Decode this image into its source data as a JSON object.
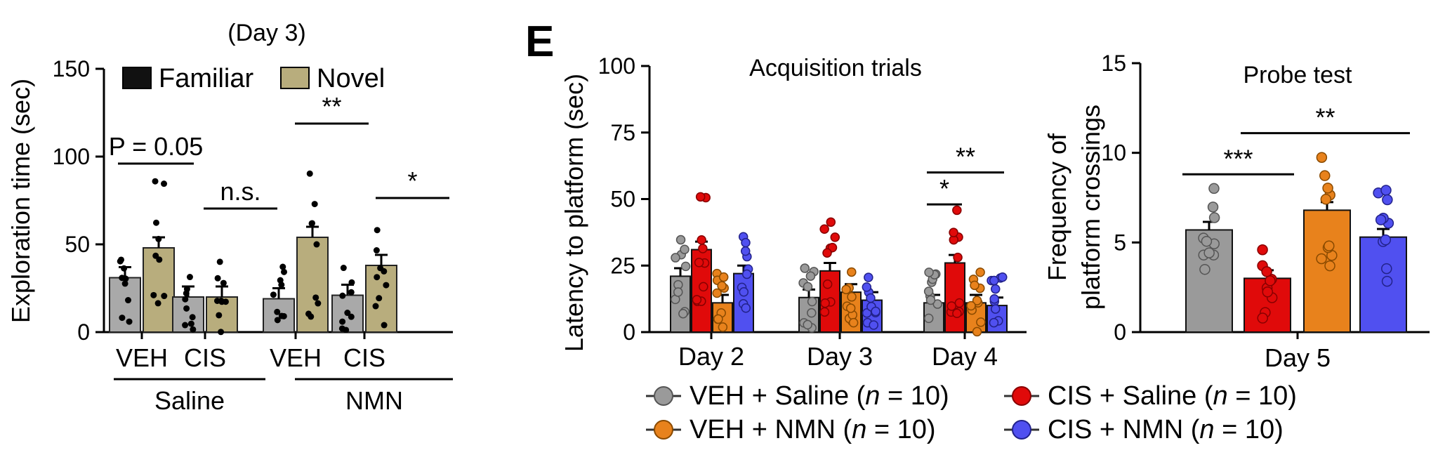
{
  "panel_label": "E",
  "colors": {
    "familiar": "#111111",
    "novel": "#b8ad7d",
    "veh_saline": "#9a9a9a",
    "cis_saline": "#e00a0a",
    "veh_nmn": "#e8821c",
    "cis_nmn": "#5050f0"
  },
  "chart_data": [
    {
      "id": "exploration",
      "type": "bar",
      "title": "(Day 3)",
      "ylabel": "Exploration time (sec)",
      "ylim": [
        0,
        150
      ],
      "yticks": [
        "0",
        "50",
        "100",
        "150"
      ],
      "legend": [
        "Familiar",
        "Novel"
      ],
      "groups": [
        {
          "label": "VEH",
          "parent": "Saline",
          "familiar": 31,
          "novel": 48,
          "sig": "P = 0.05"
        },
        {
          "label": "CIS",
          "parent": "Saline",
          "familiar": 20,
          "novel": 20,
          "sig": "n.s."
        },
        {
          "label": "VEH",
          "parent": "NMN",
          "familiar": 19,
          "novel": 54,
          "sig": "**"
        },
        {
          "label": "CIS",
          "parent": "NMN",
          "familiar": 21,
          "novel": 38,
          "sig": "*"
        }
      ],
      "parents": [
        "Saline",
        "NMN"
      ]
    },
    {
      "id": "acquisition",
      "type": "bar",
      "title": "Acquisition trials",
      "ylabel": "Latency to platform (sec)",
      "ylim": [
        0,
        100
      ],
      "yticks": [
        "0",
        "25",
        "50",
        "75",
        "100"
      ],
      "categories": [
        "Day 2",
        "Day 3",
        "Day 4"
      ],
      "series": [
        {
          "name": "VEH + Saline",
          "values": [
            21,
            13,
            11
          ]
        },
        {
          "name": "CIS + Saline",
          "values": [
            31,
            23,
            26
          ]
        },
        {
          "name": "VEH + NMN",
          "values": [
            11,
            15,
            11
          ]
        },
        {
          "name": "CIS + NMN",
          "values": [
            22,
            12,
            10
          ]
        }
      ],
      "sig": [
        {
          "label": "*",
          "day": "Day 4",
          "from": "VEH + Saline",
          "to": "CIS + Saline",
          "y": 48
        },
        {
          "label": "**",
          "day": "Day 4",
          "from": "VEH + Saline",
          "to": "CIS + NMN",
          "y": 60
        }
      ]
    },
    {
      "id": "probe",
      "type": "bar",
      "title": "Probe test",
      "ylabel_lines": [
        "Frequency of",
        "platform crossings"
      ],
      "ylim": [
        0,
        15
      ],
      "yticks": [
        "0",
        "5",
        "10",
        "15"
      ],
      "categories": [
        "Day 5"
      ],
      "series": [
        {
          "name": "VEH + Saline",
          "values": [
            5.7
          ]
        },
        {
          "name": "CIS + Saline",
          "values": [
            3.0
          ]
        },
        {
          "name": "VEH + NMN",
          "values": [
            6.8
          ]
        },
        {
          "name": "CIS + NMN",
          "values": [
            5.3
          ]
        }
      ],
      "sig": [
        {
          "label": "***",
          "from": "VEH + Saline",
          "to": "CIS + Saline",
          "y": 8.8
        },
        {
          "label": "**",
          "from": "CIS + Saline",
          "to": "CIS + NMN",
          "y": 11.1
        }
      ]
    }
  ],
  "legend": [
    {
      "name": "VEH + Saline",
      "prefix": "VEH + Saline (",
      "n": "n",
      "suffix": " = 10)"
    },
    {
      "name": "CIS + Saline",
      "prefix": "CIS + Saline (",
      "n": "n",
      "suffix": " = 10)"
    },
    {
      "name": "VEH + NMN",
      "prefix": "VEH + NMN (",
      "n": "n",
      "suffix": " = 10)"
    },
    {
      "name": "CIS + NMN",
      "prefix": "CIS + NMN (",
      "n": "n",
      "suffix": " = 10)"
    }
  ]
}
